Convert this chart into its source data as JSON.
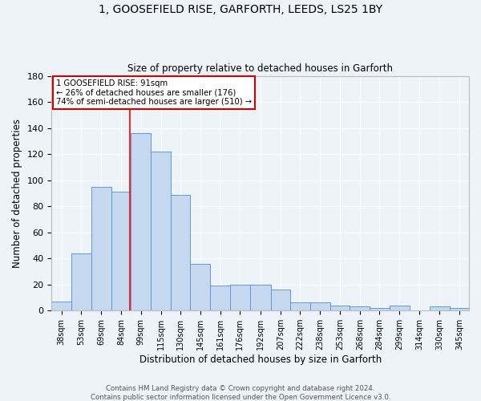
{
  "title": "1, GOOSEFIELD RISE, GARFORTH, LEEDS, LS25 1BY",
  "subtitle": "Size of property relative to detached houses in Garforth",
  "xlabel": "Distribution of detached houses by size in Garforth",
  "ylabel": "Number of detached properties",
  "bar_labels": [
    "38sqm",
    "53sqm",
    "69sqm",
    "84sqm",
    "99sqm",
    "115sqm",
    "130sqm",
    "145sqm",
    "161sqm",
    "176sqm",
    "192sqm",
    "207sqm",
    "222sqm",
    "238sqm",
    "253sqm",
    "268sqm",
    "284sqm",
    "299sqm",
    "314sqm",
    "330sqm",
    "345sqm"
  ],
  "bar_values": [
    7,
    44,
    95,
    91,
    136,
    122,
    89,
    36,
    19,
    20,
    20,
    16,
    6,
    6,
    4,
    3,
    2,
    4,
    0,
    3,
    2
  ],
  "bar_color": "#c5d8f0",
  "bar_edge_color": "#5b9bd5",
  "background_color": "#eef2f9",
  "grid_color": "#ffffff",
  "property_sqm": 91,
  "bin_edges": [
    30.5,
    45.5,
    61,
    76.5,
    91.5,
    107,
    122.5,
    137.5,
    153,
    168,
    183.5,
    199.5,
    214.5,
    230,
    245.5,
    260.5,
    276,
    291,
    306.5,
    322,
    337.5,
    352.5
  ],
  "annotation_line1": "1 GOOSEFIELD RISE: 91sqm",
  "annotation_line2": "← 26% of detached houses are smaller (176)",
  "annotation_line3": "74% of semi-detached houses are larger (510) →",
  "annotation_box_color": "#ffffff",
  "annotation_box_edge_color": "#cc0000",
  "ylim": [
    0,
    180
  ],
  "yticks": [
    0,
    20,
    40,
    60,
    80,
    100,
    120,
    140,
    160,
    180
  ],
  "footnote_line1": "Contains HM Land Registry data © Crown copyright and database right 2024.",
  "footnote_line2": "Contains public sector information licensed under the Open Government Licence v3.0."
}
